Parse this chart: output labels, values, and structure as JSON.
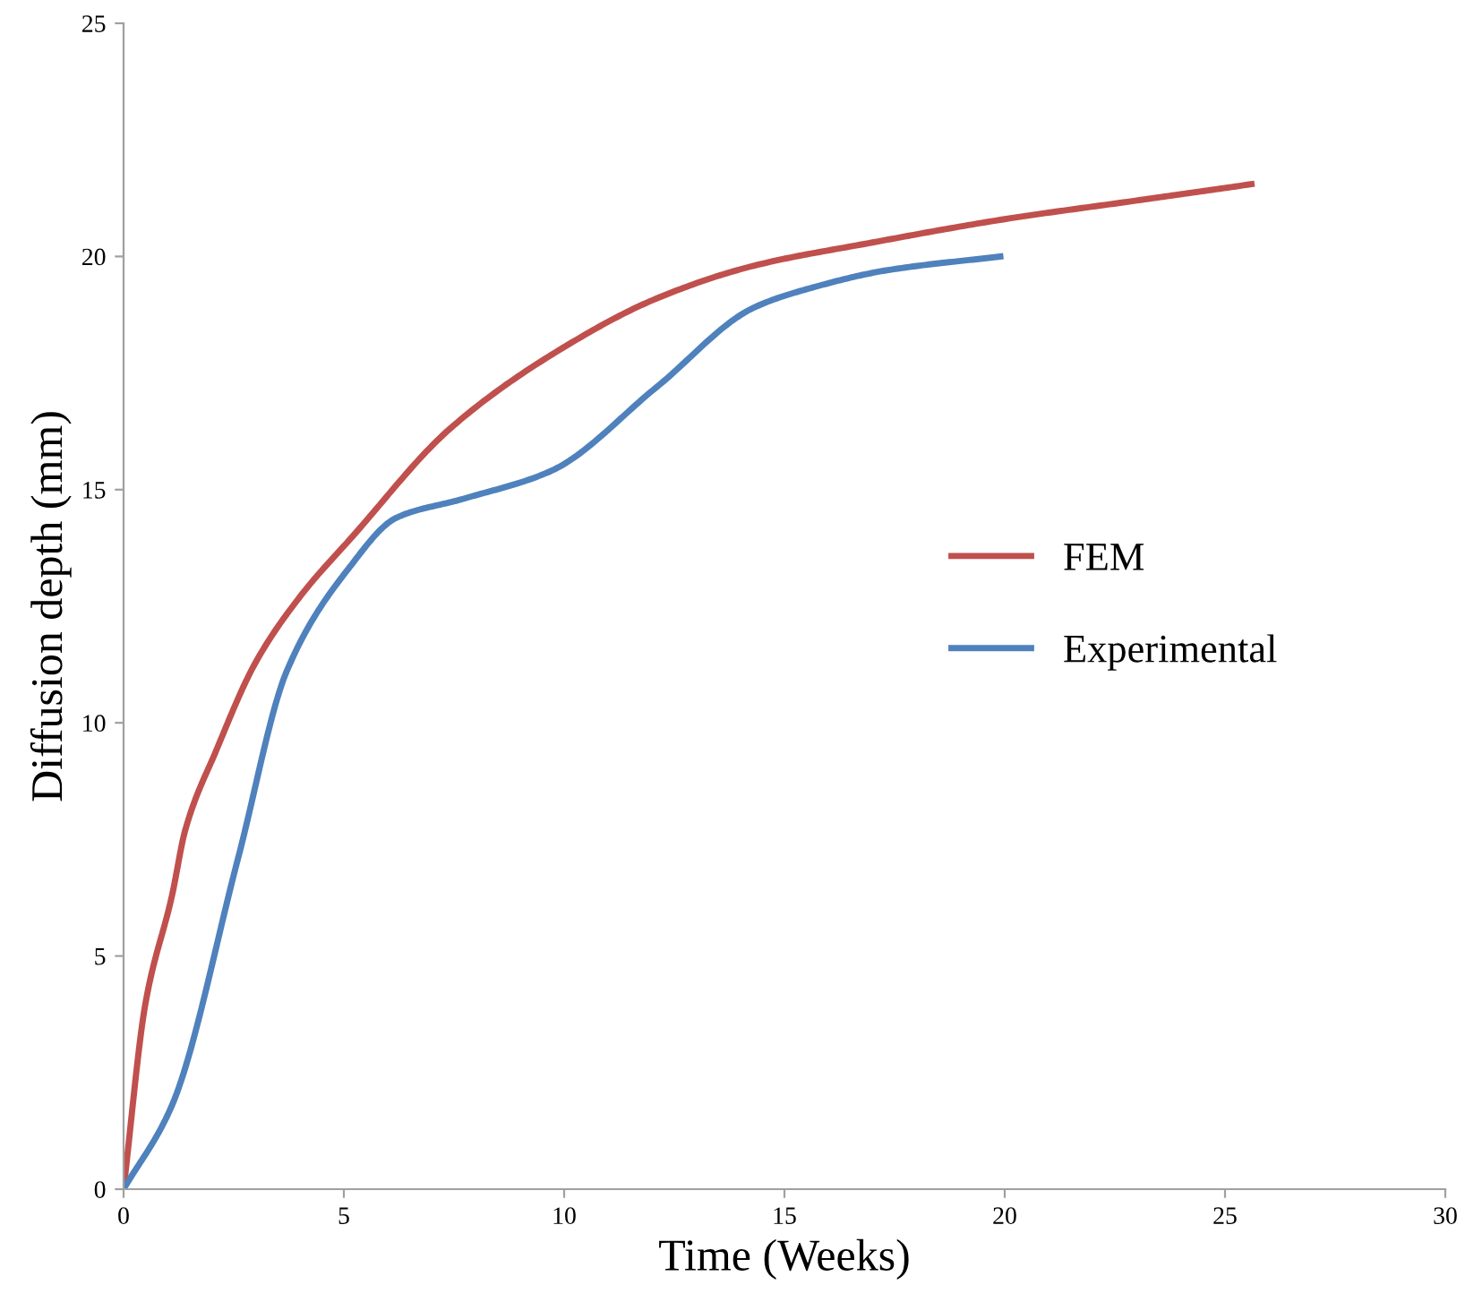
{
  "chart_data": {
    "type": "line",
    "xlabel": "Time (Weeks)",
    "ylabel": "Diffusion depth (mm)",
    "xlim": [
      0,
      30
    ],
    "ylim": [
      0,
      25
    ],
    "xticks": [
      0,
      5,
      10,
      15,
      20,
      25,
      30
    ],
    "yticks": [
      0,
      5,
      10,
      15,
      20,
      25
    ],
    "grid": false,
    "legend": "right",
    "marker": "none",
    "line_style": "solid",
    "series": [
      {
        "name": "FEM",
        "color": "#c0504d",
        "x": [
          0,
          0.5,
          1.1,
          1.4,
          2.1,
          3.0,
          4.0,
          5.2,
          7.4,
          9.9,
          12.1,
          14.3,
          17.0,
          20.0,
          23.0,
          25.6
        ],
        "values": [
          0,
          4.0,
          6.3,
          7.7,
          9.4,
          11.3,
          12.7,
          14.0,
          16.3,
          18.0,
          19.1,
          19.8,
          20.3,
          20.8,
          21.2,
          21.55
        ]
      },
      {
        "name": "Experimental",
        "color": "#4f81bd",
        "x": [
          0,
          1.1,
          2.6,
          3.7,
          5.1,
          6.2,
          7.7,
          9.7,
          12.1,
          14.3,
          15.7,
          17.3,
          19.9
        ],
        "values": [
          0,
          1.8,
          7.1,
          11.1,
          13.3,
          14.4,
          14.8,
          15.4,
          17.2,
          18.9,
          19.35,
          19.7,
          20.0
        ]
      }
    ]
  }
}
